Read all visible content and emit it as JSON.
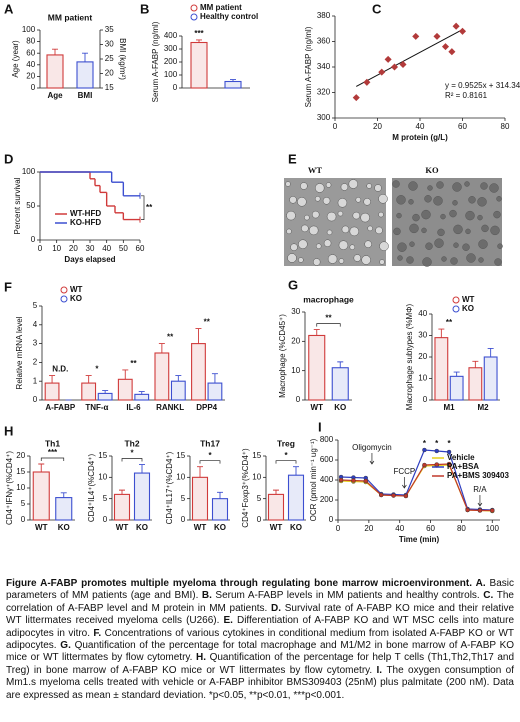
{
  "panels": {
    "A": {
      "letter": "A",
      "title": "MM patient",
      "ylabel": "Age (year)",
      "y2label": "BMI (kg/m²)",
      "ylim": [
        0,
        100
      ],
      "yticks": [
        0,
        20,
        40,
        60,
        80,
        100
      ],
      "y2lim": [
        15,
        35
      ],
      "y2ticks": [
        15,
        20,
        25,
        30,
        35
      ],
      "categories": [
        "Age",
        "BMI"
      ],
      "series": [
        {
          "color": "#d03a3a",
          "values": [
            57,
            null
          ],
          "errors": [
            10,
            null
          ]
        },
        {
          "color": "#3c4fd0",
          "axis": "y2",
          "values": [
            null,
            24
          ],
          "errors": [
            null,
            3
          ]
        }
      ]
    },
    "B": {
      "letter": "B",
      "ylabel": "Serum A-FABP (ng/ml)",
      "ylim": [
        0,
        400
      ],
      "yticks": [
        0,
        100,
        200,
        300,
        400
      ],
      "categories": [
        null,
        null
      ],
      "series": [
        {
          "name": "MM patient",
          "color": "#d03a3a",
          "values": [
            350,
            null
          ],
          "errors": [
            20,
            null
          ]
        },
        {
          "name": "Healthy control",
          "color": "#3c4fd0",
          "values": [
            null,
            50
          ],
          "errors": [
            null,
            15
          ]
        }
      ],
      "annotations": [
        "***",
        null
      ]
    },
    "C": {
      "letter": "C",
      "ylabel": "Serum A-FABP (ng/ml)",
      "xlabel": "M protein (g/L)",
      "xlim": [
        0,
        80
      ],
      "xticks": [
        0,
        20,
        40,
        60,
        80
      ],
      "ylim": [
        300,
        380
      ],
      "yticks": [
        300,
        320,
        340,
        360,
        380
      ],
      "color": "#b23a3a",
      "x": [
        10,
        15,
        22,
        25,
        28,
        32,
        38,
        48,
        52,
        55,
        57,
        60
      ],
      "y": [
        316,
        328,
        336,
        346,
        340,
        342,
        364,
        364,
        356,
        352,
        372,
        368
      ],
      "equation": "y = 0.9525x + 314.34",
      "r2": "R² = 0.8161"
    },
    "D": {
      "letter": "D",
      "ylabel": "Percent survival",
      "xlabel": "Days elapsed",
      "xlim": [
        0,
        60
      ],
      "xticks": [
        0,
        10,
        20,
        30,
        40,
        50,
        60
      ],
      "ylim": [
        0,
        100
      ],
      "yticks": [
        0,
        50,
        100
      ],
      "annotation": "**",
      "series": [
        {
          "name": "WT-HFD",
          "color": "#d03a3a",
          "x": [
            0,
            30,
            33,
            36,
            40,
            45,
            50,
            60
          ],
          "values": [
            100,
            90,
            80,
            70,
            50,
            40,
            30,
            30
          ]
        },
        {
          "name": "KO-HFD",
          "color": "#3c4fd0",
          "x": [
            0,
            43,
            50,
            60
          ],
          "values": [
            100,
            85,
            65,
            65
          ]
        }
      ]
    },
    "E": {
      "letter": "E",
      "images": [
        "WT",
        "KO"
      ]
    },
    "F": {
      "letter": "F",
      "ylabel": "Relative mRNA level",
      "ylim": [
        0,
        5
      ],
      "yticks": [
        0,
        1,
        2,
        3,
        4,
        5
      ],
      "categories": [
        "A-FABP",
        "TNF-α",
        "IL-6",
        "RANKL",
        "DPP4"
      ],
      "series": [
        {
          "name": "WT",
          "color": "#d03a3a",
          "values": [
            0.9,
            0.9,
            1.1,
            2.5,
            3.0
          ],
          "errors": [
            0.4,
            0.4,
            0.5,
            0.5,
            0.8
          ]
        },
        {
          "name": "KO",
          "color": "#3c4fd0",
          "values": [
            0,
            0.35,
            0.3,
            1.0,
            0.9
          ],
          "errors": [
            0,
            0.15,
            0.15,
            0.3,
            0.5
          ]
        }
      ],
      "annotations": [
        "N.D.",
        "*",
        "**",
        "**",
        "**"
      ]
    },
    "G": {
      "letter": "G",
      "charts": [
        {
          "title": "macrophage",
          "ylabel": "Macrophage (%CD45⁺)",
          "ylim": [
            0,
            30
          ],
          "yticks": [
            0,
            10,
            20,
            30
          ],
          "categories": [
            "WT",
            "KO"
          ],
          "series": [
            {
              "color": "#d03a3a",
              "values": [
                22,
                null
              ],
              "errors": [
                2,
                null
              ]
            },
            {
              "color": "#3c4fd0",
              "values": [
                null,
                11
              ],
              "errors": [
                null,
                2
              ]
            }
          ],
          "annotation": "**"
        },
        {
          "ylabel": "Macrophage subtypes (%MΦ)",
          "ylim": [
            0,
            40
          ],
          "yticks": [
            0,
            10,
            20,
            30,
            40
          ],
          "categories": [
            "M1",
            "M2"
          ],
          "series": [
            {
              "name": "WT",
              "color": "#d03a3a",
              "values": [
                29,
                15
              ],
              "errors": [
                4,
                3
              ]
            },
            {
              "name": "KO",
              "color": "#3c4fd0",
              "values": [
                11,
                20
              ],
              "errors": [
                2,
                4
              ]
            }
          ],
          "annotations": [
            "**",
            null
          ]
        }
      ]
    },
    "H": {
      "letter": "H",
      "charts": [
        {
          "title": "Th1",
          "ylabel": "CD4⁺IFNγ⁺(%CD4⁺)",
          "ylim": [
            0,
            20
          ],
          "yticks": [
            0,
            5,
            10,
            15,
            20
          ],
          "categories": [
            "WT",
            "KO"
          ],
          "series": [
            {
              "color": "#d03a3a",
              "values": [
                15,
                null
              ],
              "errors": [
                2.5,
                null
              ]
            },
            {
              "color": "#3c4fd0",
              "values": [
                null,
                7
              ],
              "errors": [
                null,
                1.5
              ]
            }
          ],
          "annotation": "***"
        },
        {
          "title": "Th2",
          "ylabel": "CD4⁺IL4⁺(%CD4⁺)",
          "ylim": [
            0,
            15
          ],
          "yticks": [
            0,
            5,
            10,
            15
          ],
          "categories": [
            "WT",
            "KO"
          ],
          "series": [
            {
              "color": "#d03a3a",
              "values": [
                6,
                null
              ],
              "errors": [
                1,
                null
              ]
            },
            {
              "color": "#3c4fd0",
              "values": [
                null,
                11
              ],
              "errors": [
                null,
                2
              ]
            }
          ],
          "annotation": "*"
        },
        {
          "title": "Th17",
          "ylabel": "CD4⁺IL17⁺(%CD4⁺)",
          "ylim": [
            0,
            15
          ],
          "yticks": [
            0,
            5,
            10,
            15
          ],
          "categories": [
            "WT",
            "KO"
          ],
          "series": [
            {
              "color": "#d03a3a",
              "values": [
                10,
                null
              ],
              "errors": [
                2.5,
                null
              ]
            },
            {
              "color": "#3c4fd0",
              "values": [
                null,
                5
              ],
              "errors": [
                null,
                1.5
              ]
            }
          ],
          "annotation": "*"
        },
        {
          "title": "Treg",
          "ylabel": "CD4⁺Foxp3⁺(%CD4⁺)",
          "ylim": [
            0,
            15
          ],
          "yticks": [
            0,
            5,
            10,
            15
          ],
          "categories": [
            "WT",
            "KO"
          ],
          "series": [
            {
              "color": "#d03a3a",
              "values": [
                6,
                null
              ],
              "errors": [
                1,
                null
              ]
            },
            {
              "color": "#3c4fd0",
              "values": [
                null,
                10.5
              ],
              "errors": [
                null,
                2
              ]
            }
          ],
          "annotation": "*"
        }
      ]
    },
    "I": {
      "letter": "I",
      "ylabel": "OCR (pmol min⁻¹ ug⁻¹)",
      "xlabel": "Time (min)",
      "xlim": [
        0,
        105
      ],
      "xticks": [
        0,
        20,
        40,
        60,
        80,
        100
      ],
      "ylim": [
        0,
        800
      ],
      "yticks": [
        0,
        200,
        400,
        600,
        800
      ],
      "x": [
        2,
        10,
        18,
        28,
        36,
        44,
        56,
        64,
        72,
        84,
        92,
        100
      ],
      "series": [
        {
          "name": "Vehicle",
          "color": "#e6cf1a",
          "values": [
            390,
            385,
            380,
            250,
            245,
            240,
            540,
            545,
            550,
            100,
            95,
            90
          ]
        },
        {
          "name": "PA+BSA",
          "color": "#2f3fc0",
          "values": [
            430,
            425,
            420,
            260,
            255,
            250,
            700,
            690,
            680,
            110,
            105,
            100
          ]
        },
        {
          "name": "PA+BMS 309403",
          "color": "#c0392b",
          "values": [
            400,
            395,
            390,
            250,
            245,
            240,
            550,
            555,
            560,
            100,
            95,
            95
          ]
        }
      ],
      "annotations": [
        "Oligomycin",
        "FCCP",
        "R/A",
        "*"
      ]
    }
  },
  "caption": {
    "title": "Figure A-FABP promotes multiple myeloma through regulating bone marrow microenvironment.",
    "parts": [
      {
        "label": "A.",
        "text": "Basic parameters of MM patients (age and BMI)."
      },
      {
        "label": "B.",
        "text": "Serum A-FABP levels in MM patients and healthy controls."
      },
      {
        "label": "C.",
        "text": "The correlation of A-FABP level and M protein in MM patients."
      },
      {
        "label": "D.",
        "text": "Survival rate of A-FABP KO mice and their relative WT littermates received myeloma cells (U266)."
      },
      {
        "label": "E.",
        "text": "Differentiation of A-FABP KO and WT MSC cells into mature adipocytes in vitro."
      },
      {
        "label": "F.",
        "text": "Concentrations of various cytokines in conditional medium from isolated A-FABP KO or WT adipocytes."
      },
      {
        "label": "G.",
        "text": "Quantification of the percentage for total macrophage and M1/M2 in bone marrow of A-FABP KO mice or WT littermates by flow cytometry."
      },
      {
        "label": "H.",
        "text": "Quantification of the percentage for help T cells (Th1,Th2,Th17 and Treg) in bone marrow of A-FABP KO mice or WT littermates by flow cytometry."
      },
      {
        "label": "I.",
        "text": "The oxygen consumption of Mm1.s myeloma cells treated with vehicle or A-FABP inhibitor BMS309403 (25nM) plus palmitate (200 nM). Data are expressed as mean ± standard deviation."
      }
    ],
    "footer": "*p<0.05, **p<0.01, ***p<0.001."
  }
}
